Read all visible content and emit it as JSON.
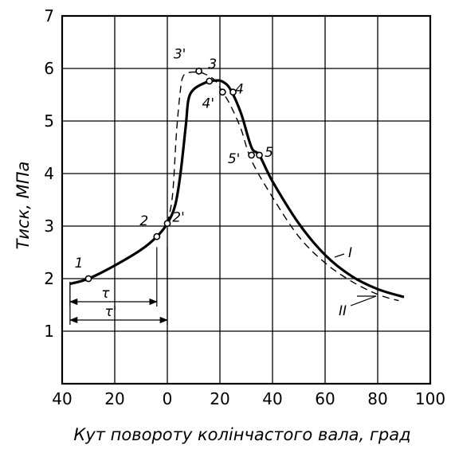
{
  "chart_data": {
    "type": "line",
    "xlabel": "Кут повороту колінчастого вала, град",
    "ylabel": "Тиск, МПа",
    "xlim": [
      -40,
      100
    ],
    "ylim": [
      0,
      7
    ],
    "x_ticks": [
      {
        "value": -40,
        "label": "40"
      },
      {
        "value": -20,
        "label": "20"
      },
      {
        "value": 0,
        "label": "0"
      },
      {
        "value": 20,
        "label": "20"
      },
      {
        "value": 40,
        "label": "40"
      },
      {
        "value": 60,
        "label": "60"
      },
      {
        "value": 80,
        "label": "80"
      },
      {
        "value": 100,
        "label": "100"
      }
    ],
    "y_ticks": [
      {
        "value": 1,
        "label": "1"
      },
      {
        "value": 2,
        "label": "2"
      },
      {
        "value": 3,
        "label": "3"
      },
      {
        "value": 4,
        "label": "4"
      },
      {
        "value": 5,
        "label": "5"
      },
      {
        "value": 6,
        "label": "6"
      },
      {
        "value": 7,
        "label": "7"
      }
    ],
    "grid": true,
    "series": [
      {
        "name": "I",
        "style": "solid",
        "x": [
          -37,
          -30,
          -20,
          -10,
          -4,
          0,
          3,
          5,
          7,
          8,
          10,
          14,
          18,
          21,
          24,
          28,
          32,
          35,
          40,
          50,
          60,
          70,
          80,
          90
        ],
        "y": [
          1.9,
          2.0,
          2.25,
          2.55,
          2.8,
          3.05,
          3.4,
          4.0,
          4.9,
          5.4,
          5.6,
          5.72,
          5.77,
          5.75,
          5.6,
          5.15,
          4.5,
          4.35,
          3.85,
          3.05,
          2.45,
          2.05,
          1.8,
          1.65
        ]
      },
      {
        "name": "II",
        "style": "dashed",
        "x": [
          0,
          2,
          3.5,
          5,
          6,
          8,
          11,
          14,
          18,
          21,
          24,
          28,
          32,
          40,
          50,
          60,
          70,
          80,
          88
        ],
        "y": [
          3.05,
          3.6,
          4.8,
          5.6,
          5.85,
          5.92,
          5.93,
          5.9,
          5.78,
          5.55,
          5.3,
          4.85,
          4.25,
          3.55,
          2.8,
          2.3,
          1.95,
          1.7,
          1.58
        ]
      }
    ],
    "markers": [
      {
        "label": "1",
        "x": -30,
        "y": 2.0
      },
      {
        "label": "2",
        "x": -4,
        "y": 2.8
      },
      {
        "label": "2'",
        "x": 0,
        "y": 3.05
      },
      {
        "label": "3'",
        "x": 12,
        "y": 5.95
      },
      {
        "label": "3",
        "x": 16,
        "y": 5.76
      },
      {
        "label": "4'",
        "x": 21,
        "y": 5.55
      },
      {
        "label": "4",
        "x": 25,
        "y": 5.55
      },
      {
        "label": "5'",
        "x": 32,
        "y": 4.35
      },
      {
        "label": "5",
        "x": 35,
        "y": 4.35
      }
    ],
    "series_labels": [
      {
        "text": "I"
      },
      {
        "text": "II"
      }
    ],
    "annotations": [
      {
        "text": "τ",
        "from_x": -37,
        "to_x": -4
      },
      {
        "text": "τ'",
        "from_x": -37,
        "to_x": 0
      }
    ]
  }
}
